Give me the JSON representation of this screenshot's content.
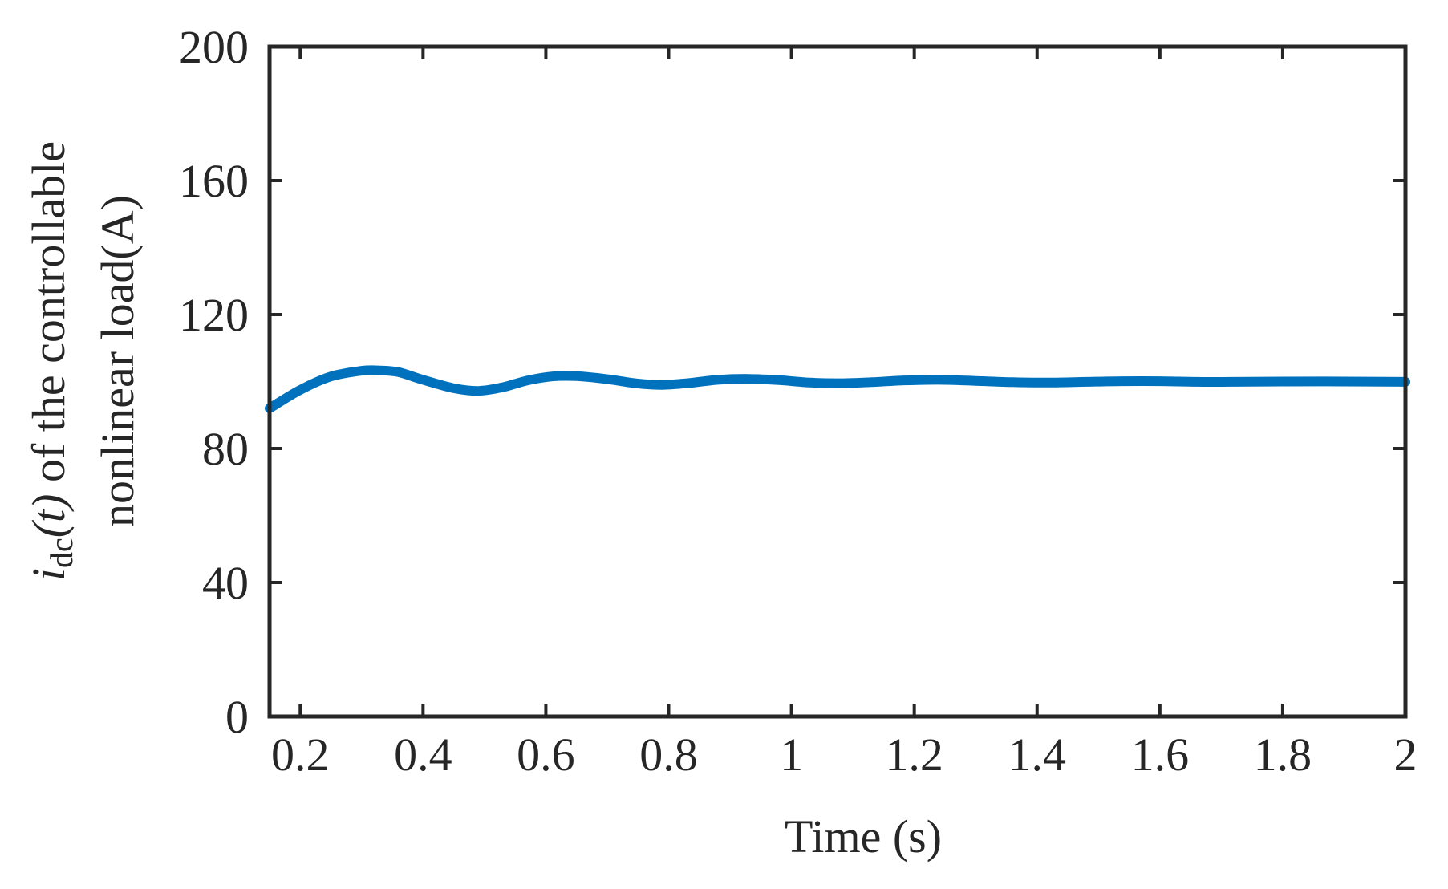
{
  "chart_data": {
    "type": "line",
    "title": "",
    "xlabel": "Time (s)",
    "ylabel": {
      "var": "i",
      "sub": "dc",
      "arg": "(t)",
      "line1_rest": " of the controllable",
      "line2": "nonlinear load(A)"
    },
    "xlim": [
      0.15,
      2.0
    ],
    "ylim": [
      0,
      200
    ],
    "xticks": [
      0.2,
      0.4,
      0.6,
      0.8,
      1.0,
      1.2,
      1.4,
      1.6,
      1.8,
      2.0
    ],
    "xtick_labels": [
      "0.2",
      "0.4",
      "0.6",
      "0.8",
      "1",
      "1.2",
      "1.4",
      "1.6",
      "1.8",
      "2"
    ],
    "yticks": [
      0,
      40,
      80,
      120,
      160,
      200
    ],
    "ytick_labels": [
      "0",
      "40",
      "80",
      "120",
      "160",
      "200"
    ],
    "grid": false,
    "series": [
      {
        "color": "#0072BD",
        "x": [
          0.15,
          0.2,
          0.25,
          0.3,
          0.33,
          0.36,
          0.4,
          0.45,
          0.49,
          0.53,
          0.57,
          0.61,
          0.65,
          0.7,
          0.75,
          0.79,
          0.83,
          0.88,
          0.93,
          0.98,
          1.03,
          1.08,
          1.13,
          1.18,
          1.24,
          1.3,
          1.36,
          1.42,
          1.48,
          1.54,
          1.6,
          1.66,
          1.72,
          1.8,
          1.9,
          2.0
        ],
        "y": [
          92,
          97.5,
          101.5,
          103.2,
          103.3,
          102.8,
          100.5,
          98,
          97.2,
          98.3,
          100.3,
          101.5,
          101.6,
          100.7,
          99.4,
          99,
          99.5,
          100.5,
          100.8,
          100.4,
          99.7,
          99.5,
          99.8,
          100.3,
          100.5,
          100.2,
          99.8,
          99.7,
          99.9,
          100.1,
          100.1,
          99.9,
          99.9,
          100,
          100,
          99.9
        ]
      }
    ]
  }
}
